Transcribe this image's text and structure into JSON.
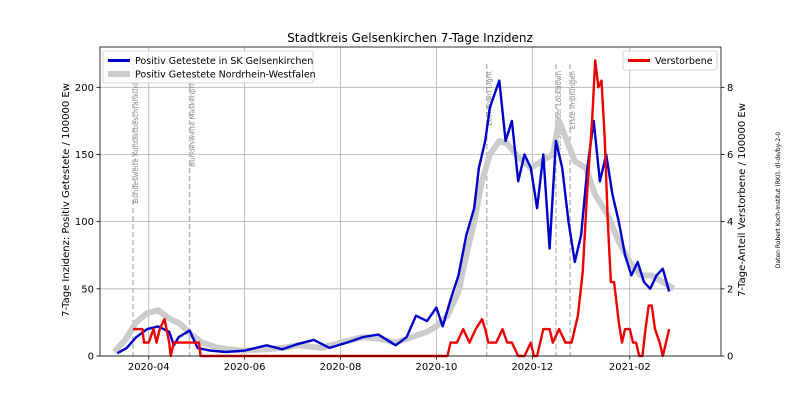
{
  "chart_data": {
    "type": "line",
    "title": "Stadtkreis Gelsenkirchen 7-Tage Inzidenz",
    "ylabel_left": "7-Tage Inzidenz: Positiv Getestete / 100000 Ew",
    "ylabel_right": "7-Tage-Anteil Verstorbene / 100000 Ew",
    "source": "Daten Robert Koch-Institut (RKI), dl-de/by-2-0",
    "xlim": [
      "2020-03-01",
      "2021-03-31"
    ],
    "ylim_left": [
      0,
      230
    ],
    "ylim_right": [
      0,
      9.2
    ],
    "grid": true,
    "x_ticks": [
      {
        "date": "2020-04-01",
        "label": "2020-04"
      },
      {
        "date": "2020-06-01",
        "label": "2020-06"
      },
      {
        "date": "2020-08-01",
        "label": "2020-08"
      },
      {
        "date": "2020-10-01",
        "label": "2020-10"
      },
      {
        "date": "2020-12-01",
        "label": "2020-12"
      },
      {
        "date": "2021-02-01",
        "label": "2021-02"
      }
    ],
    "y_ticks_left": [
      0,
      50,
      100,
      150,
      200
    ],
    "y_ticks_right": [
      0,
      2,
      4,
      6,
      8
    ],
    "events": [
      {
        "date": "2020-03-22",
        "label": "Bundesweite Kontaktbeschränkungen"
      },
      {
        "date": "2020-04-27",
        "label": "Bundesweite Maskenpflicht"
      },
      {
        "date": "2020-11-02",
        "label": "Lockdown Light"
      },
      {
        "date": "2020-12-16",
        "label": "Verschärfter Lockdown"
      },
      {
        "date": "2020-12-25",
        "label": "Erste Impfungen"
      }
    ],
    "legend_left": {
      "placement": "top-left"
    },
    "legend_right": {
      "placement": "top-right"
    },
    "series": [
      {
        "name": "Positiv Getestete Nordrhein-Westfalen",
        "axis": "left",
        "color": "#cccccc",
        "x": [
          "2020-03-10",
          "2020-03-17",
          "2020-03-24",
          "2020-03-31",
          "2020-04-07",
          "2020-04-14",
          "2020-04-21",
          "2020-04-28",
          "2020-05-05",
          "2020-05-15",
          "2020-05-30",
          "2020-06-15",
          "2020-06-25",
          "2020-07-05",
          "2020-07-20",
          "2020-08-01",
          "2020-08-15",
          "2020-08-25",
          "2020-09-05",
          "2020-09-15",
          "2020-09-25",
          "2020-10-01",
          "2020-10-08",
          "2020-10-15",
          "2020-10-20",
          "2020-10-25",
          "2020-10-30",
          "2020-11-04",
          "2020-11-10",
          "2020-11-15",
          "2020-11-22",
          "2020-11-30",
          "2020-12-07",
          "2020-12-14",
          "2020-12-18",
          "2020-12-23",
          "2020-12-28",
          "2021-01-04",
          "2021-01-10",
          "2021-01-18",
          "2021-01-25",
          "2021-02-01",
          "2021-02-08",
          "2021-02-15",
          "2021-02-22",
          "2021-03-01"
        ],
        "y": [
          3,
          12,
          25,
          32,
          34,
          28,
          24,
          16,
          10,
          6,
          4,
          5,
          6,
          8,
          6,
          10,
          14,
          13,
          10,
          14,
          18,
          22,
          30,
          48,
          75,
          100,
          130,
          150,
          160,
          158,
          148,
          140,
          145,
          150,
          175,
          160,
          145,
          140,
          120,
          105,
          85,
          70,
          60,
          60,
          55,
          50
        ]
      },
      {
        "name": "Positiv Getestete in SK Gelsenkirchen",
        "axis": "left",
        "color": "#0000cc",
        "x": [
          "2020-03-12",
          "2020-03-18",
          "2020-03-24",
          "2020-03-31",
          "2020-04-07",
          "2020-04-14",
          "2020-04-17",
          "2020-04-20",
          "2020-04-27",
          "2020-05-02",
          "2020-05-10",
          "2020-05-20",
          "2020-06-01",
          "2020-06-15",
          "2020-06-25",
          "2020-07-05",
          "2020-07-15",
          "2020-07-25",
          "2020-08-05",
          "2020-08-15",
          "2020-08-25",
          "2020-09-05",
          "2020-09-12",
          "2020-09-18",
          "2020-09-25",
          "2020-10-01",
          "2020-10-05",
          "2020-10-10",
          "2020-10-15",
          "2020-10-20",
          "2020-10-25",
          "2020-10-28",
          "2020-11-01",
          "2020-11-04",
          "2020-11-07",
          "2020-11-10",
          "2020-11-14",
          "2020-11-18",
          "2020-11-22",
          "2020-11-26",
          "2020-11-30",
          "2020-12-04",
          "2020-12-08",
          "2020-12-12",
          "2020-12-16",
          "2020-12-20",
          "2020-12-24",
          "2020-12-28",
          "2021-01-01",
          "2021-01-05",
          "2021-01-09",
          "2021-01-13",
          "2021-01-17",
          "2021-01-21",
          "2021-01-25",
          "2021-01-29",
          "2021-02-02",
          "2021-02-06",
          "2021-02-10",
          "2021-02-14",
          "2021-02-18",
          "2021-02-22",
          "2021-02-26"
        ],
        "y": [
          2,
          6,
          14,
          20,
          22,
          18,
          8,
          14,
          19,
          6,
          4,
          3,
          4,
          8,
          5,
          9,
          12,
          6,
          10,
          14,
          16,
          8,
          14,
          30,
          26,
          36,
          22,
          42,
          60,
          90,
          110,
          140,
          160,
          185,
          195,
          205,
          160,
          175,
          130,
          150,
          140,
          110,
          150,
          80,
          160,
          140,
          100,
          70,
          90,
          140,
          175,
          130,
          150,
          120,
          100,
          75,
          60,
          70,
          55,
          50,
          60,
          65,
          48
        ]
      },
      {
        "name": "Verstorbene",
        "axis": "right",
        "color": "#ee0000",
        "x": [
          "2020-03-22",
          "2020-03-28",
          "2020-03-29",
          "2020-04-01",
          "2020-04-04",
          "2020-04-06",
          "2020-04-08",
          "2020-04-11",
          "2020-04-14",
          "2020-04-15",
          "2020-04-17",
          "2020-04-20",
          "2020-04-25",
          "2020-04-27",
          "2020-05-03",
          "2020-05-04",
          "2020-05-10",
          "2020-05-11",
          "2020-06-01",
          "2020-08-01",
          "2020-10-08",
          "2020-10-10",
          "2020-10-14",
          "2020-10-18",
          "2020-10-22",
          "2020-10-26",
          "2020-10-30",
          "2020-11-01",
          "2020-11-03",
          "2020-11-06",
          "2020-11-08",
          "2020-11-12",
          "2020-11-15",
          "2020-11-18",
          "2020-11-22",
          "2020-11-26",
          "2020-11-30",
          "2020-12-02",
          "2020-12-04",
          "2020-12-08",
          "2020-12-12",
          "2020-12-14",
          "2020-12-18",
          "2020-12-22",
          "2020-12-26",
          "2020-12-30",
          "2021-01-02",
          "2021-01-05",
          "2021-01-08",
          "2021-01-10",
          "2021-01-12",
          "2021-01-14",
          "2021-01-16",
          "2021-01-18",
          "2021-01-20",
          "2021-01-22",
          "2021-01-25",
          "2021-01-27",
          "2021-01-29",
          "2021-02-01",
          "2021-02-03",
          "2021-02-05",
          "2021-02-07",
          "2021-02-09",
          "2021-02-11",
          "2021-02-13",
          "2021-02-15",
          "2021-02-17",
          "2021-02-20",
          "2021-02-22",
          "2021-02-24",
          "2021-02-26"
        ],
        "y": [
          0.8,
          0.8,
          0.4,
          0.4,
          0.8,
          0.4,
          0.8,
          1.1,
          0.4,
          0,
          0.4,
          0.4,
          0.4,
          0.4,
          0.4,
          0,
          0,
          0,
          0,
          0,
          0,
          0.4,
          0.4,
          0.8,
          0.4,
          0.8,
          1.1,
          0.8,
          0.4,
          0.4,
          0.4,
          0.8,
          0.4,
          0.4,
          0,
          0,
          0.4,
          0,
          0,
          0.8,
          0.8,
          0.4,
          0.8,
          0.4,
          0.4,
          1.2,
          2.5,
          5,
          7,
          8.8,
          8,
          8.2,
          6.5,
          4,
          2.2,
          2.2,
          1,
          0.4,
          0.8,
          0.8,
          0.4,
          0.4,
          0,
          0,
          0.8,
          1.5,
          1.5,
          0.8,
          0.4,
          0,
          0.4,
          0.8
        ]
      }
    ]
  }
}
